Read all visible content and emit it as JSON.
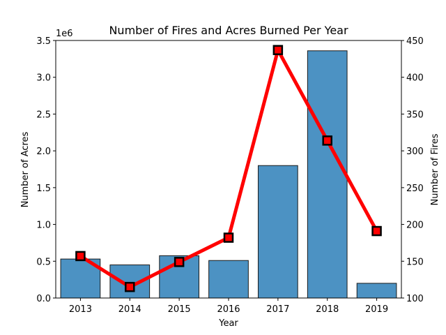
{
  "chart_data": {
    "type": "bar",
    "title": "Number of Fires and Acres Burned Per Year",
    "xlabel": "Year",
    "ylabel": "Number of Acres",
    "y2label": "Number of Fires",
    "y_offset_label": "1e6",
    "categories": [
      "2013",
      "2014",
      "2015",
      "2016",
      "2017",
      "2018",
      "2019"
    ],
    "ylim": [
      0,
      3.5
    ],
    "y2lim": [
      100,
      450
    ],
    "y_ticks": [
      "0.0",
      "0.5",
      "1.0",
      "1.5",
      "2.0",
      "2.5",
      "3.0",
      "3.5"
    ],
    "y2_ticks": [
      "100",
      "150",
      "200",
      "250",
      "300",
      "350",
      "400",
      "450"
    ],
    "grid": false,
    "series": [
      {
        "type": "bar",
        "axis": "left",
        "color": "#4c92c3",
        "values": [
          0.53,
          0.45,
          0.575,
          0.51,
          1.8,
          3.36,
          0.2
        ]
      },
      {
        "type": "line",
        "axis": "right",
        "color": "#ff0000",
        "marker_edge": "#000000",
        "values": [
          157,
          115,
          149,
          182,
          437,
          314,
          191
        ]
      }
    ]
  }
}
